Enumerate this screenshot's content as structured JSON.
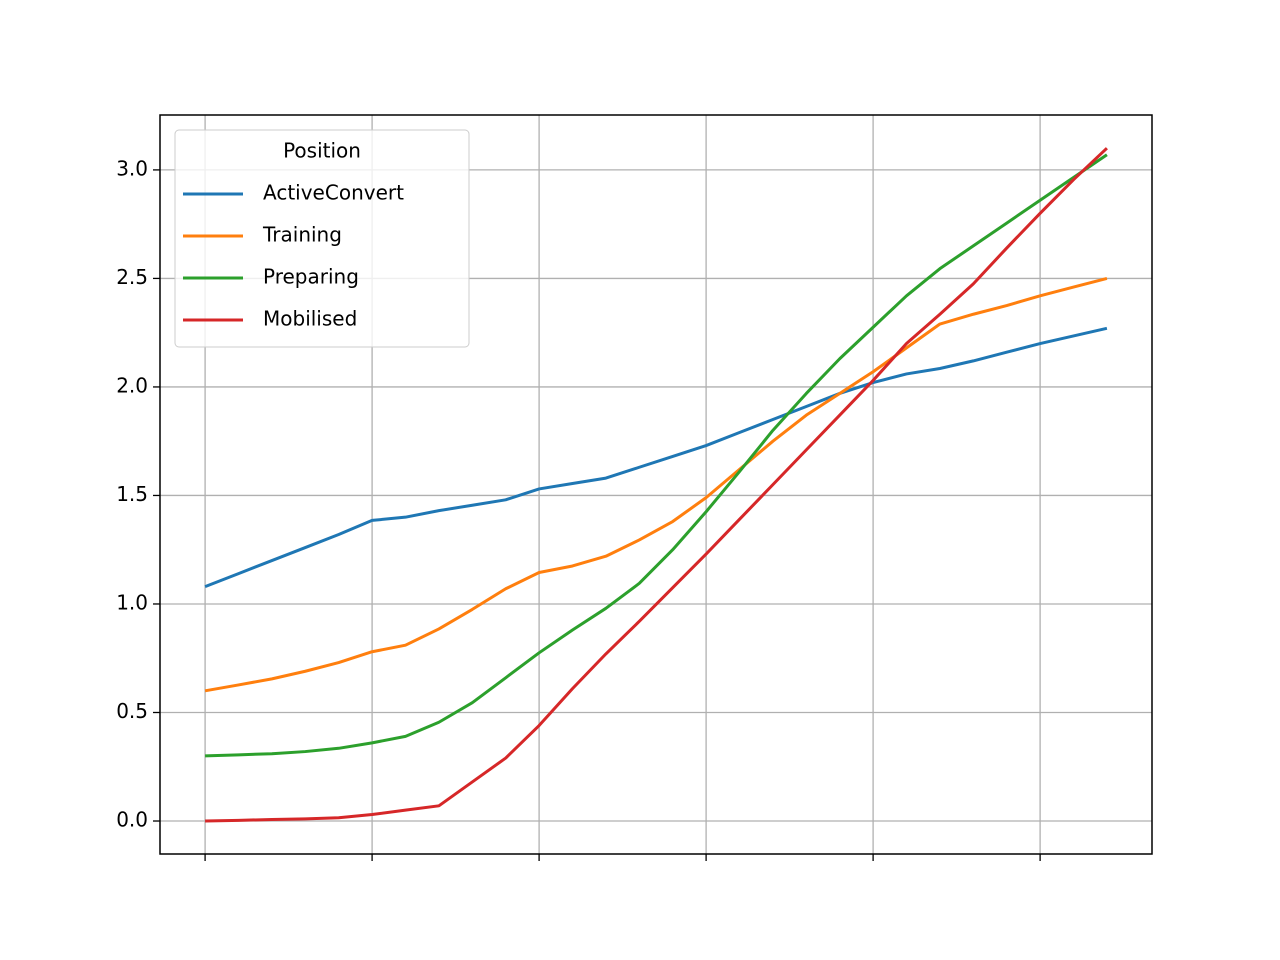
{
  "chart_data": {
    "type": "line",
    "x": [
      0,
      1,
      2,
      3,
      4,
      5,
      6,
      7,
      8,
      9,
      10,
      11,
      12,
      13,
      14,
      15,
      16,
      17,
      18,
      19,
      20,
      21,
      22,
      23,
      24,
      25,
      26,
      27
    ],
    "xlim": [
      -1.35,
      28.35
    ],
    "xticks": [
      0,
      5,
      10,
      15,
      20,
      25
    ],
    "ylim": [
      -0.152,
      3.253
    ],
    "yticks": [
      {
        "value": 0,
        "label": "0.0"
      },
      0.5,
      {
        "value": 1,
        "label": "1.0"
      },
      1.5,
      {
        "value": 2,
        "label": "2.0"
      },
      2.5,
      {
        "value": 3,
        "label": "3.0"
      }
    ],
    "grid": true,
    "legend_title": "Position",
    "legend_position": "upper left",
    "series": [
      {
        "name": "ActiveConvert",
        "color": "#1f77b4",
        "values": [
          1.08,
          1.14,
          1.2,
          1.26,
          1.32,
          1.385,
          1.4,
          1.43,
          1.455,
          1.48,
          1.53,
          1.555,
          1.58,
          1.63,
          1.68,
          1.73,
          1.79,
          1.85,
          1.91,
          1.97,
          2.02,
          2.06,
          2.085,
          2.12,
          2.16,
          2.2,
          2.235,
          2.27
        ]
      },
      {
        "name": "Training",
        "color": "#ff7f0e",
        "values": [
          0.6,
          0.627,
          0.655,
          0.69,
          0.73,
          0.78,
          0.81,
          0.885,
          0.975,
          1.07,
          1.145,
          1.175,
          1.22,
          1.295,
          1.38,
          1.49,
          1.62,
          1.75,
          1.87,
          1.97,
          2.07,
          2.18,
          2.29,
          2.335,
          2.375,
          2.42,
          2.46,
          2.5
        ]
      },
      {
        "name": "Preparing",
        "color": "#2ca02c",
        "values": [
          0.3,
          0.305,
          0.31,
          0.32,
          0.335,
          0.36,
          0.39,
          0.455,
          0.545,
          0.66,
          0.775,
          0.88,
          0.98,
          1.095,
          1.25,
          1.425,
          1.61,
          1.8,
          1.97,
          2.13,
          2.275,
          2.42,
          2.545,
          2.65,
          2.755,
          2.86,
          2.965,
          3.07
        ]
      },
      {
        "name": "Mobilised",
        "color": "#d62728",
        "values": [
          0.0,
          0.003,
          0.007,
          0.01,
          0.015,
          0.03,
          0.05,
          0.07,
          0.18,
          0.29,
          0.44,
          0.61,
          0.77,
          0.92,
          1.075,
          1.23,
          1.39,
          1.55,
          1.71,
          1.87,
          2.03,
          2.2,
          2.335,
          2.475,
          2.64,
          2.8,
          2.955,
          3.1
        ]
      }
    ]
  }
}
